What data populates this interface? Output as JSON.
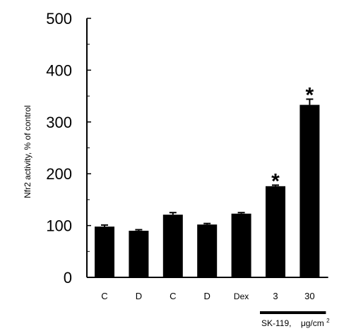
{
  "chart_data": {
    "type": "bar",
    "title": "",
    "xlabel": "",
    "ylabel": "Nfr2 activity, % of control",
    "ylim": [
      0,
      500
    ],
    "yticks": [
      0,
      100,
      200,
      300,
      400,
      500
    ],
    "y_minor_step": 50,
    "categories": [
      "C",
      "D",
      "C",
      "D",
      "Dex",
      "3",
      "30"
    ],
    "values": [
      98,
      90,
      121,
      102,
      123,
      176,
      333
    ],
    "errors": [
      3,
      2,
      4,
      2,
      2,
      2,
      11
    ],
    "significance": [
      "",
      "",
      "",
      "",
      "",
      "*",
      "*"
    ],
    "group_label": {
      "text": "SK-119,",
      "unit": "μg/cm",
      "unit_sup": "2",
      "spans_categories": [
        5,
        6
      ]
    },
    "bar_color": "#000000",
    "grid": false,
    "legend": "none"
  }
}
